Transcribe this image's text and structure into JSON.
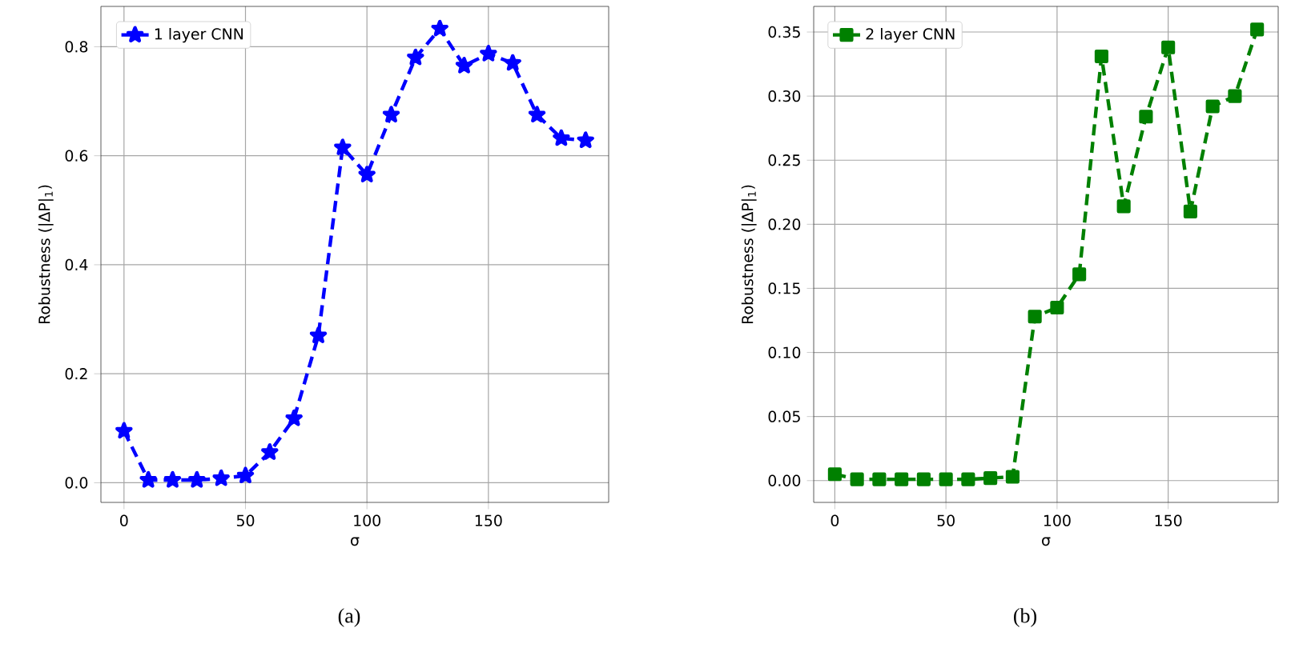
{
  "chart_data": [
    {
      "type": "line",
      "xlabel": "σ",
      "ylabel": "Robustness (|ΔP|$_{1}$)",
      "annotations": [
        "(a)"
      ],
      "x": [
        0,
        10,
        20,
        30,
        40,
        50,
        60,
        70,
        80,
        90,
        100,
        110,
        120,
        130,
        140,
        150,
        160,
        170,
        180,
        190
      ],
      "series": [
        {
          "name": "1 layer CNN",
          "color": "#0000ff",
          "values": [
            0.095,
            0.005,
            0.005,
            0.005,
            0.008,
            0.013,
            0.056,
            0.118,
            0.27,
            0.615,
            0.565,
            0.675,
            0.78,
            0.833,
            0.765,
            0.787,
            0.77,
            0.675,
            0.632,
            0.628
          ]
        }
      ],
      "xlim": [
        -9.5,
        199.5
      ],
      "ylim": [
        -0.036,
        0.874
      ],
      "xticks": [
        0,
        50,
        100,
        150
      ],
      "yticks": [
        {
          "value": 0,
          "label": "0.0"
        },
        0.2,
        0.4,
        0.6,
        0.8
      ],
      "grid": true,
      "legend": "top left",
      "marker": "star",
      "line_style": "dashed"
    },
    {
      "type": "line",
      "xlabel": "σ",
      "ylabel": "Robustness (|ΔP|$_{1}$)",
      "annotations": [
        "(b)"
      ],
      "x": [
        0,
        10,
        20,
        30,
        40,
        50,
        60,
        70,
        80,
        90,
        100,
        110,
        120,
        130,
        140,
        150,
        160,
        170,
        180,
        190
      ],
      "series": [
        {
          "name": "2 layer CNN",
          "color": "#008000",
          "values": [
            0.005,
            0.001,
            0.001,
            0.001,
            0.001,
            0.001,
            0.001,
            0.002,
            0.003,
            0.128,
            0.135,
            0.161,
            0.331,
            0.214,
            0.284,
            0.338,
            0.21,
            0.292,
            0.3,
            0.352
          ]
        }
      ],
      "xlim": [
        -9.5,
        199.5
      ],
      "ylim": [
        -0.017,
        0.37
      ],
      "xticks": [
        0,
        50,
        100,
        150
      ],
      "yticks": [
        {
          "value": 0,
          "label": "0.00"
        },
        0.05,
        {
          "value": 0.1,
          "label": "0.10"
        },
        0.15,
        {
          "value": 0.2,
          "label": "0.20"
        },
        0.25,
        {
          "value": 0.3,
          "label": "0.30"
        },
        0.35
      ],
      "grid": true,
      "legend": "top left",
      "marker": "square",
      "line_style": "dashed"
    }
  ]
}
